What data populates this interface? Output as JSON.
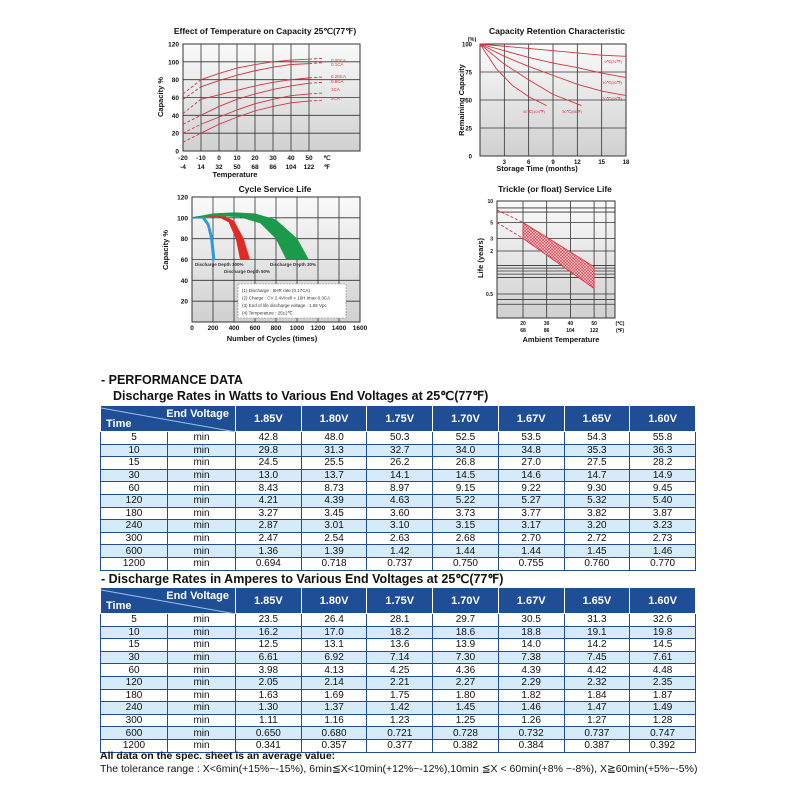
{
  "chart_data": [
    {
      "type": "line",
      "title": "Effect of Temperature on Capacity  25℃(77℉)",
      "xlabel": "Temperature",
      "ylabel": "Capacity %",
      "xlim": [
        -20,
        50
      ],
      "ylim": [
        0,
        120
      ],
      "x_ticks_c": [
        "-20",
        "-10",
        "0",
        "10",
        "20",
        "30",
        "40",
        "50",
        "℃"
      ],
      "x_ticks_f": [
        "-4",
        "14",
        "32",
        "50",
        "68",
        "86",
        "104",
        "122",
        "℉"
      ],
      "y_ticks": [
        "0",
        "20",
        "40",
        "60",
        "80",
        "100",
        "120"
      ],
      "grid": true,
      "x": [
        -20,
        -10,
        0,
        10,
        20,
        30,
        40,
        50
      ],
      "series": [
        {
          "name": "0.05CA",
          "values": [
            64,
            80,
            87,
            93,
            97,
            100,
            102,
            103
          ]
        },
        {
          "name": "0.1CA",
          "values": [
            58,
            72,
            79,
            85,
            90,
            94,
            97,
            98
          ]
        },
        {
          "name": "0.25CA",
          "values": [
            42,
            58,
            63,
            68,
            73,
            77,
            80,
            82
          ]
        },
        {
          "name": "0.6CA",
          "values": [
            30,
            40,
            50,
            58,
            64,
            69,
            73,
            76
          ]
        },
        {
          "name": "1CA",
          "values": [
            20,
            30,
            38,
            46,
            53,
            58,
            62,
            64
          ]
        },
        {
          "name": "2CA",
          "values": [
            10,
            20,
            30,
            38,
            45,
            50,
            54,
            56
          ]
        }
      ],
      "line_color": "#d9333f"
    },
    {
      "type": "line",
      "title": "Capacity Retention Characteristic",
      "xlabel": "Storage Time (months)",
      "ylabel": "Remaining Capacity",
      "yunit": "(%)",
      "xlim": [
        0,
        18
      ],
      "ylim": [
        0,
        100
      ],
      "x_ticks": [
        "3",
        "6",
        "9",
        "12",
        "15",
        "18"
      ],
      "y_ticks": [
        "0",
        "25",
        "50",
        "75",
        "100"
      ],
      "grid": true,
      "series": [
        {
          "name": "0℃(32℉)",
          "x": [
            0,
            3,
            6,
            9,
            12,
            15,
            18
          ],
          "values": [
            100,
            98,
            96,
            94,
            92,
            90,
            89
          ]
        },
        {
          "name": "10℃(50℉)",
          "x": [
            0,
            3,
            6,
            9,
            12,
            15,
            18
          ],
          "values": [
            100,
            94,
            88,
            83,
            79,
            74,
            70
          ]
        },
        {
          "name": "20℃(68℉)",
          "x": [
            0,
            3,
            6,
            9,
            12,
            15,
            18
          ],
          "values": [
            100,
            89,
            80,
            72,
            64,
            58,
            54
          ]
        },
        {
          "name": "30℃(86℉)",
          "x": [
            0,
            3,
            6,
            9,
            12.5
          ],
          "values": [
            100,
            82,
            68,
            55,
            45
          ]
        },
        {
          "name": "40℃(104℉)",
          "x": [
            0,
            2,
            4,
            6,
            8.2
          ],
          "values": [
            100,
            78,
            63,
            53,
            45
          ]
        }
      ],
      "line_color": "#d9333f"
    },
    {
      "type": "area",
      "title": "Cycle Service Life",
      "xlabel": "Number of Cycles (times)",
      "ylabel": "Capacity %",
      "xlim": [
        0,
        1600
      ],
      "ylim": [
        0,
        120
      ],
      "x_ticks": [
        "0",
        "200",
        "400",
        "600",
        "800",
        "1000",
        "1200",
        "1400",
        "1600"
      ],
      "y_ticks": [
        "20",
        "40",
        "60",
        "80",
        "100",
        "120"
      ],
      "grid": true,
      "series": [
        {
          "name": "Discharge Depth 100%",
          "color": "#2a9be0",
          "outer": [
            [
              0,
              100
            ],
            [
              60,
              101
            ],
            [
              110,
              101
            ],
            [
              160,
              94
            ],
            [
              195,
              80
            ],
            [
              215,
              60
            ]
          ],
          "inner": [
            [
              200,
              60
            ],
            [
              180,
              80
            ],
            [
              150,
              93
            ],
            [
              100,
              100
            ],
            [
              0,
              100
            ]
          ]
        },
        {
          "name": "Discharge Depth 50%",
          "color": "#e02a26",
          "outer": [
            [
              0,
              100
            ],
            [
              100,
              102
            ],
            [
              200,
              103
            ],
            [
              300,
              102
            ],
            [
              400,
              97
            ],
            [
              490,
              80
            ],
            [
              550,
              60
            ]
          ],
          "inner": [
            [
              460,
              60
            ],
            [
              420,
              80
            ],
            [
              350,
              96
            ],
            [
              250,
              101
            ],
            [
              100,
              101
            ],
            [
              0,
              100
            ]
          ]
        },
        {
          "name": "Discharge Depth 30%",
          "color": "#1a9a4a",
          "outer": [
            [
              0,
              100
            ],
            [
              200,
              104
            ],
            [
              400,
              105
            ],
            [
              600,
              104
            ],
            [
              800,
              98
            ],
            [
              1000,
              80
            ],
            [
              1110,
              60
            ]
          ],
          "inner": [
            [
              900,
              60
            ],
            [
              800,
              80
            ],
            [
              650,
              95
            ],
            [
              450,
              101
            ],
            [
              200,
              102
            ],
            [
              0,
              100
            ]
          ]
        }
      ],
      "annotations": [
        "(1) Discharge : 5HR rate (0.17CA)",
        "(2) Charge : CV 2.4V/cell × 16H Imax 0.3CA",
        "(3) End of life discharge voltage : 1.65 Vpc",
        "(4) Temperature : 25±2℃"
      ]
    },
    {
      "type": "area",
      "title": "Trickle (or float) Service Life",
      "xlabel": "Ambient Temperature",
      "ylabel": "Life (years)",
      "y_scale": "log",
      "x_ticks_c": [
        "20",
        "30",
        "40",
        "50",
        "(℃)"
      ],
      "x_ticks_f": [
        "68",
        "86",
        "104",
        "122",
        "(℉)"
      ],
      "y_ticks": [
        "10",
        "5",
        "3",
        "2",
        "0.5"
      ],
      "grid": true,
      "band": {
        "x": [
          20,
          50
        ],
        "upper": [
          5,
          1.2
        ],
        "lower": [
          3,
          0.6
        ]
      },
      "extrapolation": {
        "x": [
          9,
          20
        ],
        "upper": [
          7.5,
          5
        ],
        "lower": [
          5,
          3
        ]
      },
      "color": "#d9333f"
    }
  ],
  "performance": {
    "heading": "- PERFORMANCE DATA",
    "corner_end_voltage": "End Voltage",
    "corner_time": "Time",
    "unit": "min",
    "voltages": [
      "1.85V",
      "1.80V",
      "1.75V",
      "1.70V",
      "1.67V",
      "1.65V",
      "1.60V"
    ],
    "watts": {
      "title": "Discharge Rates in Watts to Various End Voltages at 25℃(77℉)",
      "rows": [
        {
          "time": "5",
          "values": [
            "42.8",
            "48.0",
            "50.3",
            "52.5",
            "53.5",
            "54.3",
            "55.8"
          ]
        },
        {
          "time": "10",
          "values": [
            "29.8",
            "31.3",
            "32.7",
            "34.0",
            "34.8",
            "35.3",
            "36.3"
          ]
        },
        {
          "time": "15",
          "values": [
            "24.5",
            "25.5",
            "26.2",
            "26.8",
            "27.0",
            "27.5",
            "28.2"
          ]
        },
        {
          "time": "30",
          "values": [
            "13.0",
            "13.7",
            "14.1",
            "14.5",
            "14.6",
            "14.7",
            "14.9"
          ]
        },
        {
          "time": "60",
          "values": [
            "8.43",
            "8.73",
            "8.97",
            "9.15",
            "9.22",
            "9.30",
            "9.45"
          ]
        },
        {
          "time": "120",
          "values": [
            "4.21",
            "4.39",
            "4.63",
            "5.22",
            "5.27",
            "5.32",
            "5.40"
          ]
        },
        {
          "time": "180",
          "values": [
            "3.27",
            "3.45",
            "3.60",
            "3.73",
            "3.77",
            "3.82",
            "3.87"
          ]
        },
        {
          "time": "240",
          "values": [
            "2.87",
            "3.01",
            "3.10",
            "3.15",
            "3.17",
            "3.20",
            "3.23"
          ]
        },
        {
          "time": "300",
          "values": [
            "2.47",
            "2.54",
            "2.63",
            "2.68",
            "2.70",
            "2.72",
            "2.73"
          ]
        },
        {
          "time": "600",
          "values": [
            "1.36",
            "1.39",
            "1.42",
            "1.44",
            "1.44",
            "1.45",
            "1.46"
          ]
        },
        {
          "time": "1200",
          "values": [
            "0.694",
            "0.718",
            "0.737",
            "0.750",
            "0.755",
            "0.760",
            "0.770"
          ]
        }
      ]
    },
    "amperes": {
      "title": "- Discharge Rates in Amperes to Various End Voltages at 25℃(77℉)",
      "rows": [
        {
          "time": "5",
          "values": [
            "23.5",
            "26.4",
            "28.1",
            "29.7",
            "30.5",
            "31.3",
            "32.6"
          ]
        },
        {
          "time": "10",
          "values": [
            "16.2",
            "17.0",
            "18.2",
            "18.6",
            "18.8",
            "19.1",
            "19.8"
          ]
        },
        {
          "time": "15",
          "values": [
            "12.5",
            "13.1",
            "13.6",
            "13.9",
            "14.0",
            "14.2",
            "14.5"
          ]
        },
        {
          "time": "30",
          "values": [
            "6.61",
            "6.92",
            "7.14",
            "7.30",
            "7.38",
            "7.45",
            "7.61"
          ]
        },
        {
          "time": "60",
          "values": [
            "3.98",
            "4.13",
            "4.25",
            "4.36",
            "4.39",
            "4.42",
            "4.48"
          ]
        },
        {
          "time": "120",
          "values": [
            "2.05",
            "2.14",
            "2.21",
            "2.27",
            "2.29",
            "2.32",
            "2.35"
          ]
        },
        {
          "time": "180",
          "values": [
            "1.63",
            "1.69",
            "1.75",
            "1.80",
            "1.82",
            "1.84",
            "1.87"
          ]
        },
        {
          "time": "240",
          "values": [
            "1.30",
            "1.37",
            "1.42",
            "1.45",
            "1.46",
            "1.47",
            "1.49"
          ]
        },
        {
          "time": "300",
          "values": [
            "1.11",
            "1.16",
            "1.23",
            "1.25",
            "1.26",
            "1.27",
            "1.28"
          ]
        },
        {
          "time": "600",
          "values": [
            "0.650",
            "0.680",
            "0.721",
            "0.728",
            "0.732",
            "0.737",
            "0.747"
          ]
        },
        {
          "time": "1200",
          "values": [
            "0.341",
            "0.357",
            "0.377",
            "0.382",
            "0.384",
            "0.387",
            "0.392"
          ]
        }
      ]
    },
    "header_color": "#1f4e96",
    "alt_row_color": "#d6ebf9"
  },
  "notes": {
    "bold": "All data on the spec. sheet is an average value:",
    "tolerance": "The tolerance range : X<6min(+15%~-15%), 6min≦X<10min(+12%~-12%),10min ≦X < 60min(+8% ~-8%), X≧60min(+5%~-5%)"
  }
}
